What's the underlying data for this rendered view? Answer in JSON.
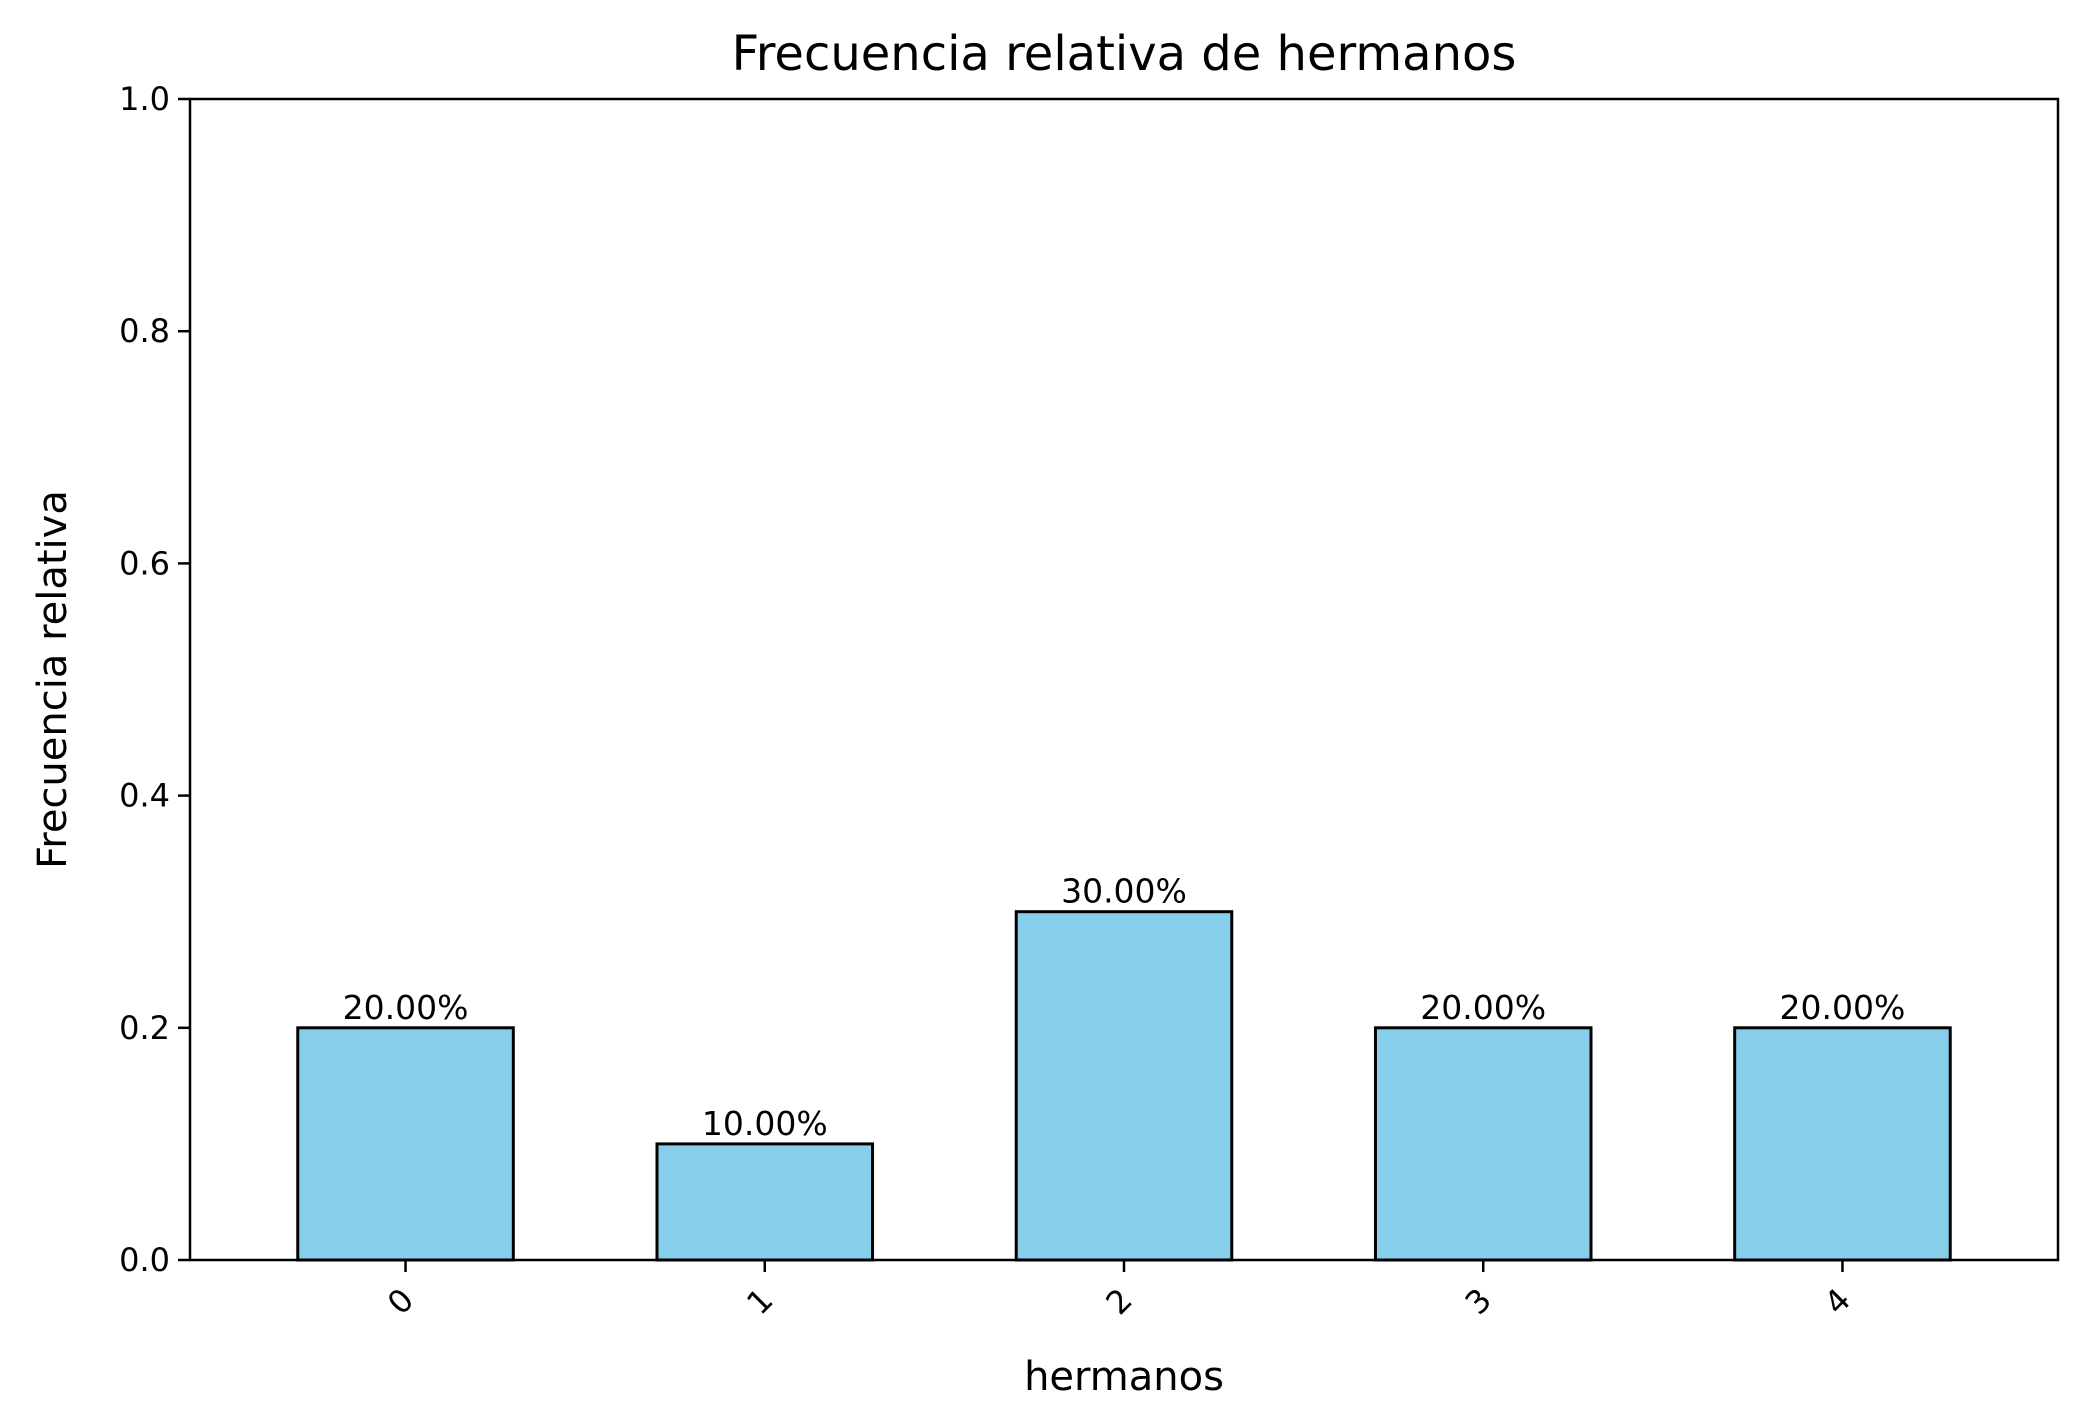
{
  "chart_data": {
    "type": "bar",
    "title": "Frecuencia relativa de hermanos",
    "xlabel": "hermanos",
    "ylabel": "Frecuencia relativa",
    "categories": [
      "0",
      "1",
      "2",
      "3",
      "4"
    ],
    "values": [
      0.2,
      0.1,
      0.3,
      0.2,
      0.2
    ],
    "bar_labels": [
      "20.00%",
      "10.00%",
      "30.00%",
      "20.00%",
      "20.00%"
    ],
    "ylim": [
      0,
      1.0
    ],
    "yticks": [
      "0.0",
      "0.2",
      "0.4",
      "0.6",
      "0.8",
      "1.0"
    ],
    "grid": false,
    "bar_color": "#87ceeb",
    "edge_color": "#000000",
    "xtick_rotation_deg": 45
  }
}
